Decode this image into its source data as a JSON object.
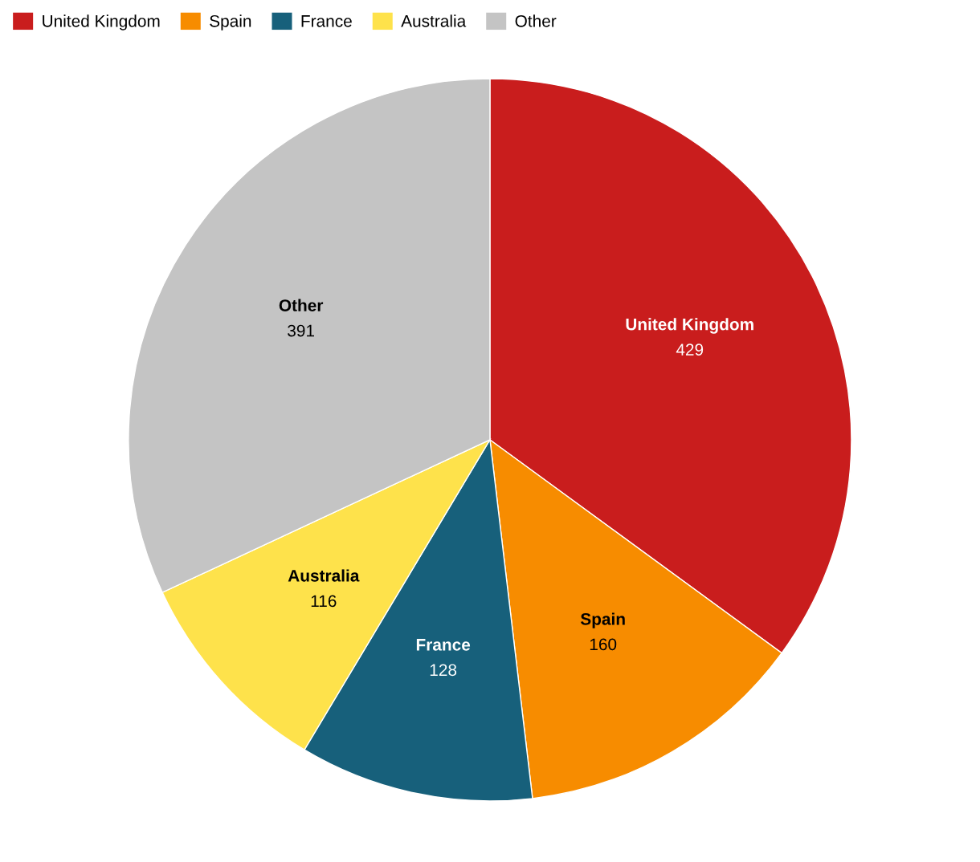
{
  "chart_data": {
    "type": "pie",
    "categories": [
      "United Kingdom",
      "Spain",
      "France",
      "Australia",
      "Other"
    ],
    "values": [
      429,
      160,
      128,
      116,
      391
    ],
    "colors": [
      "#c91d1d",
      "#f78c00",
      "#17607b",
      "#fee24b",
      "#c4c4c4"
    ],
    "data_labels": true,
    "legend": "top left"
  }
}
